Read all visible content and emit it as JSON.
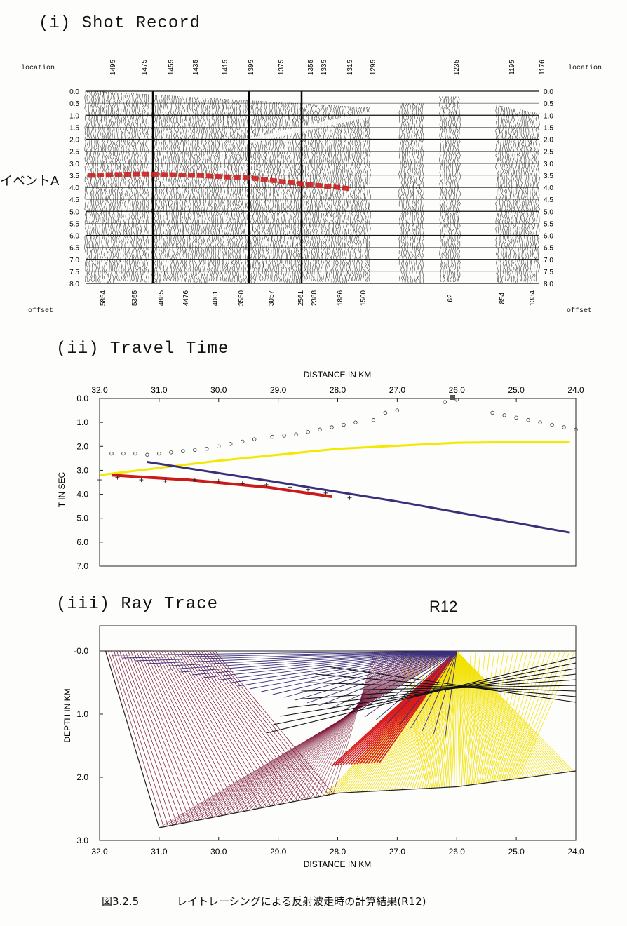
{
  "section1": {
    "title": "(i) Shot Record",
    "location_label": "location",
    "offset_label": "offset",
    "event_label": "イベントA",
    "location_ticks": [
      "1495",
      "1475",
      "1455",
      "1435",
      "1415",
      "1395",
      "1375",
      "1355",
      "1335",
      "1315",
      "1295",
      "1235",
      "1195",
      "1176"
    ],
    "offset_ticks": [
      "5854",
      "5365",
      "4885",
      "4476",
      "4001",
      "3550",
      "3057",
      "2561",
      "2388",
      "1886",
      "1500",
      "62",
      "854",
      "1334"
    ],
    "time_ticks": [
      "0.0",
      "0.5",
      "1.0",
      "1.5",
      "2.0",
      "2.5",
      "3.0",
      "3.5",
      "4.0",
      "4.5",
      "5.0",
      "5.5",
      "6.0",
      "6.5",
      "7.0",
      "7.5",
      "8.0"
    ]
  },
  "section2": {
    "title": "(ii) Travel Time",
    "xlabel": "DISTANCE IN KM",
    "ylabel": "T IN SEC",
    "x_ticks": [
      "32.0",
      "31.0",
      "30.0",
      "29.0",
      "28.0",
      "27.0",
      "26.0",
      "25.0",
      "24.0"
    ],
    "y_ticks": [
      "0.0",
      "1.0",
      "2.0",
      "3.0",
      "4.0",
      "5.0",
      "6.0",
      "7.0"
    ]
  },
  "section3": {
    "title": "(iii) Ray Trace",
    "label": "R12",
    "xlabel": "DISTANCE IN KM",
    "ylabel": "DEPTH IN KM",
    "x_ticks": [
      "32.0",
      "31.0",
      "30.0",
      "29.0",
      "28.0",
      "27.0",
      "26.0",
      "25.0",
      "24.0"
    ],
    "y_ticks": [
      "-0.0",
      "1.0",
      "2.0",
      "3.0"
    ]
  },
  "caption": {
    "number": "図3.2.5",
    "text": "レイトレーシングによる反射波走時の計算結果(R12)"
  },
  "chart_data": [
    {
      "type": "scatter",
      "title": "(ii) Travel Time",
      "xlabel": "DISTANCE IN KM",
      "ylabel": "T IN SEC",
      "xlim": [
        32.0,
        24.0
      ],
      "ylim": [
        7.0,
        0.0
      ],
      "series": [
        {
          "marker": "circle",
          "points": [
            [
              31.8,
              2.3
            ],
            [
              31.6,
              2.3
            ],
            [
              31.4,
              2.3
            ],
            [
              31.2,
              2.35
            ],
            [
              31.0,
              2.3
            ],
            [
              30.8,
              2.25
            ],
            [
              30.6,
              2.2
            ],
            [
              30.4,
              2.15
            ],
            [
              30.2,
              2.1
            ],
            [
              30.0,
              2.0
            ],
            [
              29.8,
              1.9
            ],
            [
              29.6,
              1.8
            ],
            [
              29.4,
              1.7
            ],
            [
              29.1,
              1.6
            ],
            [
              28.9,
              1.55
            ],
            [
              28.7,
              1.5
            ],
            [
              28.5,
              1.4
            ],
            [
              28.3,
              1.3
            ],
            [
              28.1,
              1.2
            ],
            [
              27.9,
              1.1
            ],
            [
              27.7,
              1.0
            ],
            [
              27.4,
              0.9
            ],
            [
              27.2,
              0.6
            ],
            [
              27.0,
              0.5
            ],
            [
              26.2,
              0.15
            ],
            [
              26.0,
              0.05
            ],
            [
              25.4,
              0.6
            ],
            [
              25.2,
              0.7
            ],
            [
              25.0,
              0.8
            ],
            [
              24.8,
              0.9
            ],
            [
              24.6,
              1.0
            ],
            [
              24.4,
              1.1
            ],
            [
              24.2,
              1.2
            ],
            [
              24.0,
              1.3
            ]
          ]
        },
        {
          "marker": "plus",
          "points": [
            [
              32.0,
              3.4
            ],
            [
              31.7,
              3.3
            ],
            [
              31.3,
              3.4
            ],
            [
              30.9,
              3.45
            ],
            [
              30.4,
              3.4
            ],
            [
              30.0,
              3.45
            ],
            [
              29.6,
              3.55
            ],
            [
              29.2,
              3.6
            ],
            [
              28.8,
              3.7
            ],
            [
              28.5,
              3.8
            ],
            [
              28.2,
              3.95
            ],
            [
              27.8,
              4.15
            ]
          ]
        }
      ],
      "curves": [
        {
          "color": "#f5e800",
          "points": [
            [
              32.0,
              3.2
            ],
            [
              30.0,
              2.6
            ],
            [
              28.0,
              2.1
            ],
            [
              26.0,
              1.85
            ],
            [
              24.1,
              1.8
            ]
          ]
        },
        {
          "color": "#3a2f7a",
          "points": [
            [
              31.2,
              2.65
            ],
            [
              29.0,
              3.5
            ],
            [
              27.0,
              4.3
            ],
            [
              24.1,
              5.6
            ]
          ]
        },
        {
          "color": "#cc1a1a",
          "points": [
            [
              31.8,
              3.2
            ],
            [
              30.5,
              3.4
            ],
            [
              29.2,
              3.7
            ],
            [
              28.1,
              4.1
            ]
          ]
        }
      ]
    },
    {
      "type": "line",
      "title": "(iii) Ray Trace",
      "xlabel": "DISTANCE IN KM",
      "ylabel": "DEPTH IN KM",
      "xlim": [
        32.0,
        24.0
      ],
      "ylim": [
        3.0,
        -0.4
      ],
      "source_x": 26.0,
      "reflector": [
        [
          31.9,
          0.0
        ],
        [
          31.0,
          2.8
        ],
        [
          28.0,
          2.25
        ],
        [
          26.0,
          2.15
        ],
        [
          24.0,
          1.9
        ]
      ]
    }
  ]
}
